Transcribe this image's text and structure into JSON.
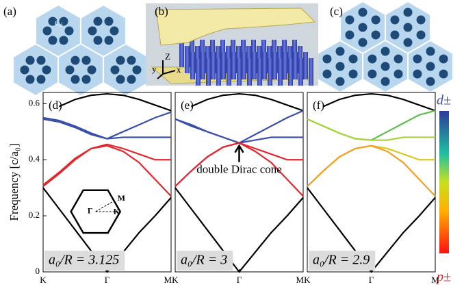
{
  "labels": {
    "a": "(a)",
    "b": "(b)",
    "c": "(c)"
  },
  "epsilon": {
    "symbol": "ε",
    "sub": "d"
  },
  "axes3d": {
    "z": "Z",
    "y": "y",
    "x": "x"
  },
  "colorbar": {
    "top": "d±",
    "bottom": "p±"
  },
  "chart_data": [
    {
      "type": "line",
      "title": "(d)",
      "y_label": "Frequency [c/a₀]",
      "parameter_label": "a₀/R = 3.125",
      "inset_labels": [
        "Γ",
        "M",
        "K"
      ],
      "x": [
        0,
        0.25,
        0.5,
        0.75,
        1,
        1.25,
        1.5,
        1.75,
        2
      ],
      "xlim": [
        0,
        2
      ],
      "xticks": [
        {
          "value": 0,
          "label": "K"
        },
        {
          "value": 1,
          "label": "Γ"
        },
        {
          "value": 2,
          "label": "MK"
        }
      ],
      "ylim": [
        0,
        0.64
      ],
      "yticks": [
        0,
        0.2,
        0.4,
        0.6
      ],
      "series": [
        {
          "color": "#000000",
          "values": [
            null,
            0.59,
            0.615,
            0.63,
            0.635,
            0.63,
            0.615,
            0.595,
            0.575
          ]
        },
        {
          "color": "#3a4fa8",
          "values": [
            0.545,
            0.535,
            0.515,
            0.49,
            0.475,
            0.5,
            0.525,
            0.55,
            0.57
          ]
        },
        {
          "color": "#3a4fa8",
          "values": [
            0.55,
            0.54,
            0.52,
            0.495,
            0.475,
            0.48,
            0.48,
            0.48,
            0.48
          ]
        },
        {
          "color": "#e0282e",
          "values": [
            0.305,
            0.35,
            0.4,
            0.44,
            0.455,
            0.44,
            0.42,
            0.4,
            0.4
          ]
        },
        {
          "color": "#e0282e",
          "values": [
            0.31,
            0.355,
            0.405,
            0.44,
            0.45,
            0.43,
            0.39,
            0.33,
            0.27
          ]
        },
        {
          "color": "#000000",
          "values": [
            0.3,
            0.225,
            0.15,
            0.075,
            0,
            0.07,
            0.14,
            0.2,
            0.265
          ]
        }
      ]
    },
    {
      "type": "line",
      "title": "(e)",
      "parameter_label": "a₀/R = 3",
      "annotation": "double Dirac cone",
      "x": [
        0,
        0.25,
        0.5,
        0.75,
        1,
        1.25,
        1.5,
        1.75,
        2
      ],
      "xlim": [
        0,
        2
      ],
      "xticks": [
        {
          "value": 1,
          "label": "Γ"
        },
        {
          "value": 2,
          "label": "MK"
        }
      ],
      "ylim": [
        0,
        0.64
      ],
      "series": [
        {
          "color": "#000000",
          "values": [
            null,
            0.59,
            0.615,
            0.63,
            0.635,
            0.63,
            0.615,
            0.595,
            0.575
          ]
        },
        {
          "color": "#3a4fa8",
          "values": [
            0.545,
            0.525,
            0.5,
            0.48,
            0.46,
            0.49,
            0.52,
            0.55,
            0.575
          ]
        },
        {
          "color": "#3a4fa8",
          "values": [
            0.545,
            0.52,
            0.5,
            0.48,
            0.46,
            0.47,
            0.48,
            0.48,
            0.48
          ]
        },
        {
          "color": "#e0282e",
          "values": [
            0.305,
            0.36,
            0.41,
            0.445,
            0.46,
            0.44,
            0.42,
            0.4,
            0.4
          ]
        },
        {
          "color": "#e0282e",
          "values": [
            0.305,
            0.36,
            0.41,
            0.445,
            0.46,
            0.43,
            0.39,
            0.33,
            0.27
          ]
        },
        {
          "color": "#000000",
          "values": [
            0.3,
            0.225,
            0.15,
            0.075,
            0,
            0.07,
            0.14,
            0.2,
            0.265
          ]
        }
      ]
    },
    {
      "type": "line",
      "title": "(f)",
      "parameter_label": "a₀/R = 2.9",
      "x": [
        0,
        0.25,
        0.5,
        0.75,
        1,
        1.25,
        1.5,
        1.75,
        2
      ],
      "xlim": [
        0,
        2
      ],
      "xticks": [
        {
          "value": 1,
          "label": "Γ"
        },
        {
          "value": 2,
          "label": "M"
        }
      ],
      "ylim": [
        0,
        0.64
      ],
      "series": [
        {
          "color": "#000000",
          "values": [
            null,
            0.59,
            0.615,
            0.63,
            0.635,
            0.63,
            0.615,
            0.595,
            0.575
          ]
        },
        {
          "color": "#5cbf4a",
          "values": [
            0.545,
            0.52,
            0.495,
            0.475,
            0.47,
            0.5,
            0.53,
            0.56,
            0.575
          ]
        },
        {
          "color": "#a8d43a",
          "values": [
            0.545,
            0.52,
            0.495,
            0.475,
            0.47,
            0.47,
            0.48,
            0.48,
            0.48
          ]
        },
        {
          "color": "#d8c828",
          "values": [
            0.305,
            0.36,
            0.41,
            0.44,
            0.45,
            0.44,
            0.42,
            0.4,
            0.4
          ]
        },
        {
          "color": "#f0a020",
          "values": [
            0.305,
            0.36,
            0.41,
            0.44,
            0.45,
            0.43,
            0.39,
            0.33,
            0.27
          ]
        },
        {
          "color": "#000000",
          "values": [
            0.3,
            0.225,
            0.15,
            0.075,
            0,
            0.07,
            0.14,
            0.2,
            0.265
          ]
        }
      ]
    }
  ]
}
